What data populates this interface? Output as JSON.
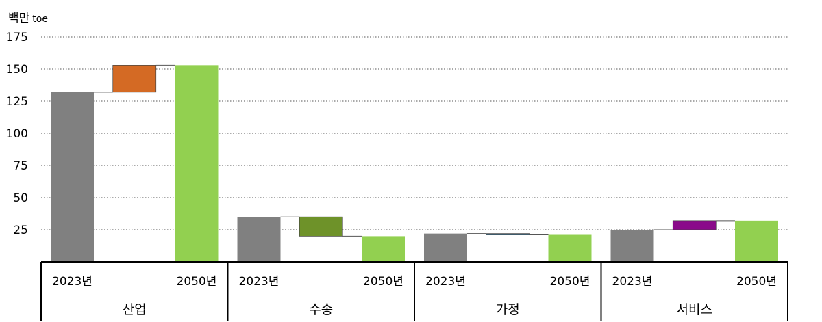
{
  "chart_data": {
    "type": "waterfall",
    "unit_label": "백만",
    "unit_suffix": "toe",
    "y_ticks": [
      25,
      50,
      75,
      100,
      125,
      150,
      175
    ],
    "ylim": [
      0,
      175
    ],
    "grid": "dotted horizontal",
    "bar_labels": [
      "2023년",
      "2050년"
    ],
    "groups": [
      {
        "name": "산업",
        "start": 132,
        "end": 153,
        "delta_color": "#d46a24"
      },
      {
        "name": "수송",
        "start": 35,
        "end": 20,
        "delta_color": "#6e9229"
      },
      {
        "name": "가정",
        "start": 22,
        "end": 21,
        "delta_color": "#2e8fc6"
      },
      {
        "name": "서비스",
        "start": 25,
        "end": 32,
        "delta_color": "#8a0a8a"
      }
    ],
    "colors": {
      "base": "#808080",
      "final": "#92d050",
      "connector": "#555555"
    }
  }
}
